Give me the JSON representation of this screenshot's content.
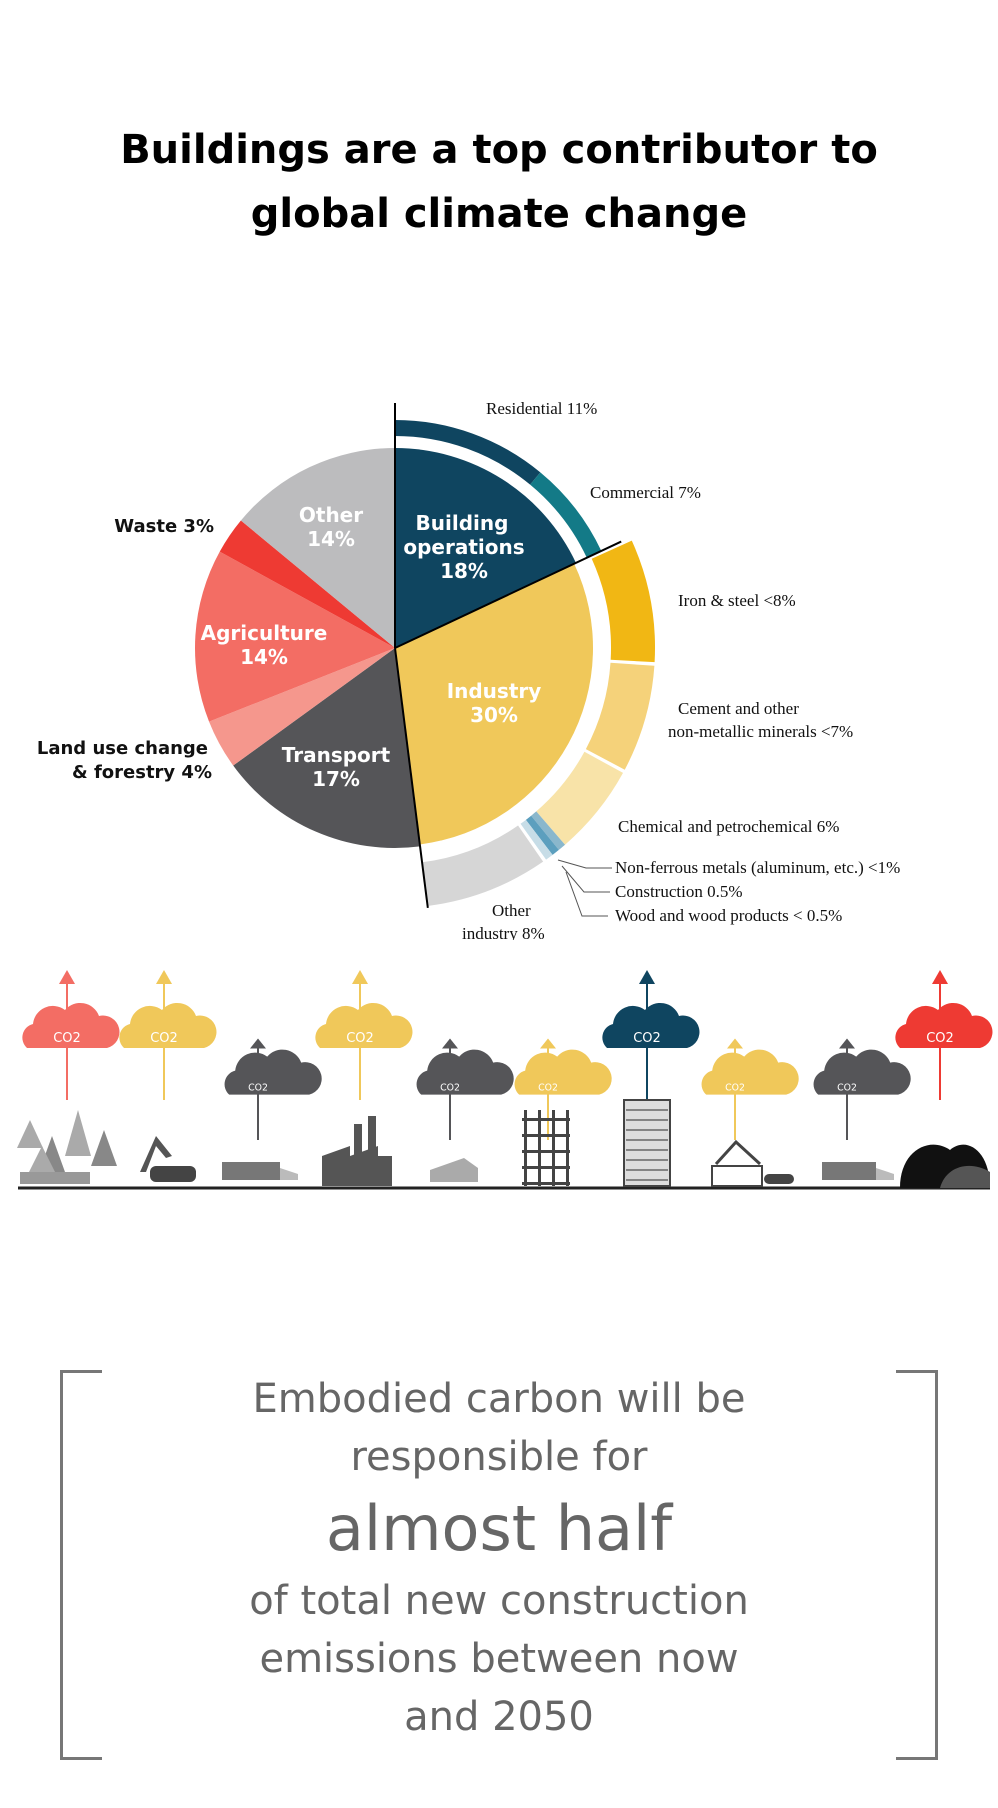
{
  "title": {
    "line1": "Buildings are a top contributor to",
    "line2": "global climate change"
  },
  "chart_data": {
    "type": "pie",
    "title": "Buildings are a top contributor to global climate change",
    "slices": [
      {
        "label": "Building operations",
        "value": 18,
        "display": "18%",
        "color": "#0f4560"
      },
      {
        "label": "Industry",
        "value": 30,
        "display": "30%",
        "color": "#f0c85a"
      },
      {
        "label": "Transport",
        "value": 17,
        "display": "17%",
        "color": "#555558"
      },
      {
        "label": "Land use change & forestry",
        "value": 4,
        "display": "4%",
        "color": "#f5978d"
      },
      {
        "label": "Agriculture",
        "value": 14,
        "display": "14%",
        "color": "#f36d64"
      },
      {
        "label": "Waste",
        "value": 3,
        "display": "3%",
        "color": "#ee3a33"
      },
      {
        "label": "Other",
        "value": 14,
        "display": "14%",
        "color": "#bcbcbe"
      }
    ],
    "building_breakdown": [
      {
        "label": "Residential",
        "value": 11,
        "display": "11%",
        "color": "#0f4560"
      },
      {
        "label": "Commercial",
        "value": 7,
        "display": "7%",
        "color": "#137a87"
      }
    ],
    "industry_breakdown": [
      {
        "label": "Iron & steel",
        "value": 8,
        "display": "<8%",
        "color": "#f1b714"
      },
      {
        "label": "Cement and other non-metallic minerals",
        "value": 7,
        "display": "<7%",
        "color": "#f5d27a"
      },
      {
        "label": "Chemical and petrochemical",
        "value": 6,
        "display": "6%",
        "color": "#f8e3a8"
      },
      {
        "label": "Non-ferrous metals (aluminum, etc.)",
        "value": 0.5,
        "display": "<1%",
        "color": "#8ab7cc"
      },
      {
        "label": "Construction",
        "value": 0.5,
        "display": "0.5%",
        "color": "#5c9fbe"
      },
      {
        "label": "Wood and wood products",
        "value": 0.5,
        "display": "< 0.5%",
        "color": "#c7dde7"
      },
      {
        "label": "Other industry",
        "value": 8,
        "display": "8%",
        "color": "#d6d6d6"
      }
    ],
    "labels": {
      "residential": "Residential 11%",
      "commercial": "Commercial 7%",
      "iron": "Iron & steel <8%",
      "cement1": "Cement and other",
      "cement2": "non-metallic minerals <7%",
      "chemical": "Chemical and petrochemical 6%",
      "nonferrous": "Non-ferrous metals (aluminum, etc.) <1%",
      "construction": "Construction 0.5%",
      "wood": "Wood and wood products < 0.5%",
      "otherind1": "Other",
      "otherind2": "industry  8%",
      "waste": "Waste 3%",
      "landuse1": "Land use change",
      "landuse2": "& forestry 4%",
      "other_in": "Other",
      "other_pct": "14%",
      "building_in1": "Building",
      "building_in2": "operations",
      "building_pct": "18%",
      "industry_in": "Industry",
      "industry_pct": "30%",
      "transport_in": "Transport",
      "transport_pct": "17%",
      "agri_in": "Agriculture",
      "agri_pct": "14%"
    }
  },
  "icon_row": {
    "co2_label": "CO2",
    "items": [
      {
        "name": "forest",
        "color": "#f36d64"
      },
      {
        "name": "excavator",
        "color": "#f0c85a"
      },
      {
        "name": "freight-train",
        "color": "#555558"
      },
      {
        "name": "factory",
        "color": "#f0c85a"
      },
      {
        "name": "cement-mixer",
        "color": "#555558"
      },
      {
        "name": "scaffold",
        "color": "#f0c85a"
      },
      {
        "name": "office-building",
        "color": "#0f4560"
      },
      {
        "name": "construction-site",
        "color": "#f0c85a"
      },
      {
        "name": "freight-wagon",
        "color": "#555558"
      },
      {
        "name": "waste-heap",
        "color": "#ee3a33"
      }
    ]
  },
  "quote": {
    "line1": "Embodied carbon will be",
    "line2": "responsible for",
    "highlight": "almost half",
    "line3": "of total new construction",
    "line4": "emissions between now",
    "line5": "and 2050"
  }
}
